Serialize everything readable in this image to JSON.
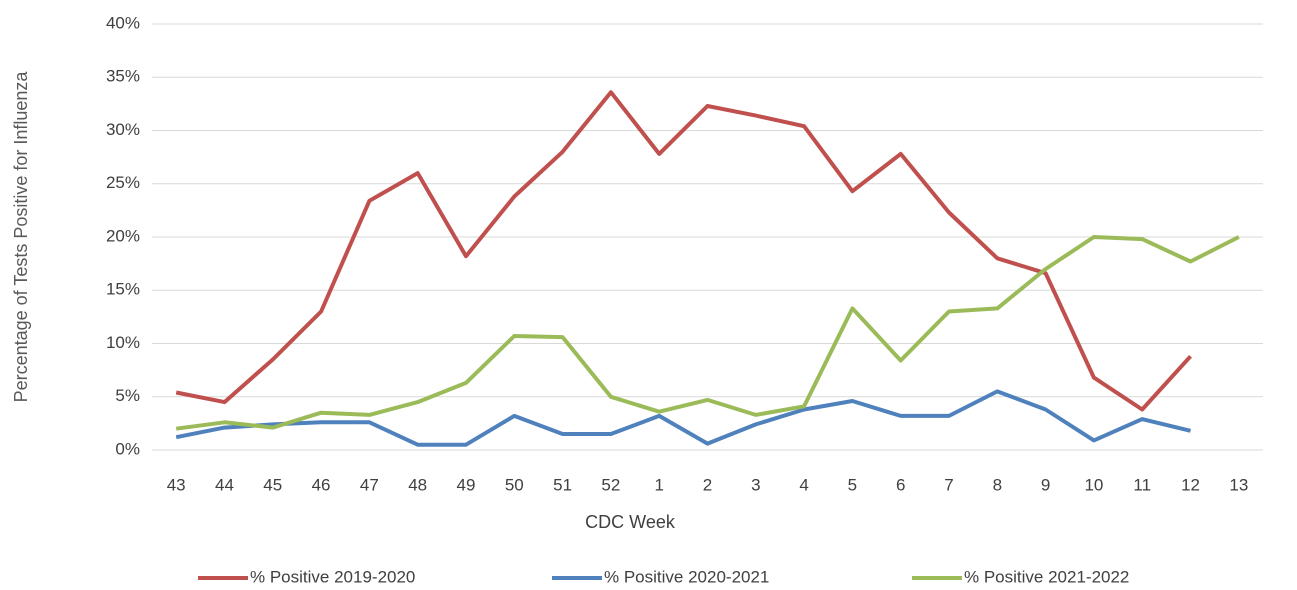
{
  "chart_data": {
    "type": "line",
    "x_label": "CDC Week",
    "y_label": "Percentage of Tests Positive for Influenza",
    "categories": [
      "43",
      "44",
      "45",
      "46",
      "47",
      "48",
      "49",
      "50",
      "51",
      "52",
      "1",
      "2",
      "3",
      "4",
      "5",
      "6",
      "7",
      "8",
      "9",
      "10",
      "11",
      "12",
      "13"
    ],
    "series": [
      {
        "name": "% Positive 2019-2020",
        "color": "#c0504d",
        "values": [
          5.4,
          4.5,
          8.5,
          13,
          23.4,
          26,
          18.2,
          23.8,
          28,
          33.6,
          27.8,
          32.3,
          31.4,
          30.4,
          24.3,
          27.8,
          22.3,
          18,
          16.6,
          6.8,
          3.8,
          8.8,
          null
        ]
      },
      {
        "name": "% Positive 2020-2021",
        "color": "#4f81bd",
        "values": [
          1.2,
          2.1,
          2.4,
          2.6,
          2.6,
          0.5,
          0.5,
          3.2,
          1.5,
          1.5,
          3.2,
          0.6,
          2.4,
          3.8,
          4.6,
          3.2,
          3.2,
          5.5,
          3.8,
          0.9,
          2.9,
          1.8,
          null
        ]
      },
      {
        "name": "% Positive 2021-2022",
        "color": "#9bbb59",
        "values": [
          2.0,
          2.6,
          2.1,
          3.5,
          3.3,
          4.5,
          6.3,
          10.7,
          10.6,
          5.0,
          3.6,
          4.7,
          3.3,
          4.1,
          13.3,
          8.4,
          13,
          13.3,
          17,
          20,
          19.8,
          17.7,
          20
        ]
      }
    ],
    "ylim": [
      0,
      40
    ],
    "yticks": [
      {
        "value": 0,
        "label": "0%"
      },
      {
        "value": 5,
        "label": "5%"
      },
      {
        "value": 10,
        "label": "10%"
      },
      {
        "value": 15,
        "label": "15%"
      },
      {
        "value": 20,
        "label": "20%"
      },
      {
        "value": 25,
        "label": "25%"
      },
      {
        "value": 30,
        "label": "30%"
      },
      {
        "value": 35,
        "label": "35%"
      },
      {
        "value": 40,
        "label": "40%"
      }
    ],
    "grid": true,
    "legend": "bottom"
  }
}
